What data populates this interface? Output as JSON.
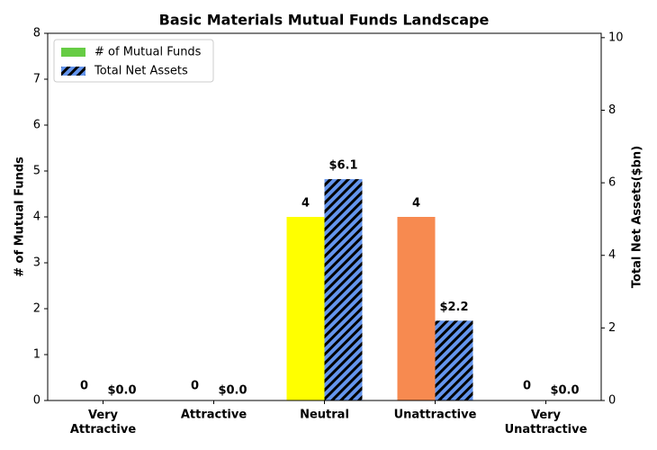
{
  "chart_data": {
    "type": "bar",
    "title": "Basic Materials Mutual Funds Landscape",
    "categories": [
      "Very Attractive",
      "Attractive",
      "Neutral",
      "Unattractive",
      "Very Unattractive"
    ],
    "ylabel": "# of Mutual Funds",
    "y2label": "Total Net Assets($bn)",
    "ylim": [
      0,
      8
    ],
    "yticks": [
      0,
      1,
      2,
      3,
      4,
      5,
      6,
      7,
      8
    ],
    "y2lim": [
      0,
      10.12
    ],
    "y2ticks": [
      0,
      2,
      4,
      6,
      8,
      10
    ],
    "legend": "upper left",
    "series": [
      {
        "name": "# of Mutual Funds",
        "color": "#66cc44",
        "colors": [
          "#66cc44",
          "#66cc44",
          "#ffff00",
          "#f78a50",
          "#66cc44"
        ],
        "values": [
          0,
          0,
          4,
          4,
          0
        ]
      },
      {
        "name": "Total Net Assets",
        "color": "#6495ed",
        "hatch": true,
        "axis": "y2",
        "values": [
          0,
          0,
          6.1,
          2.2,
          0
        ],
        "value_labels": [
          "$0.0",
          "$0.0",
          "$6.1",
          "$2.2",
          "$0.0"
        ]
      }
    ]
  }
}
